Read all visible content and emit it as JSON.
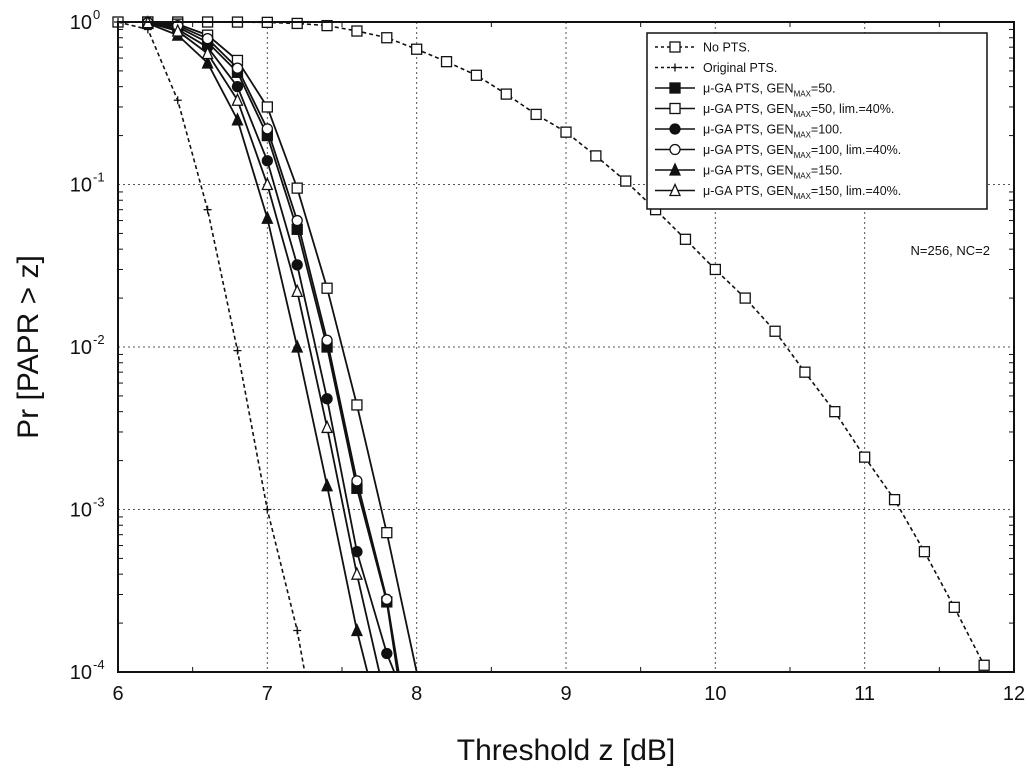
{
  "chart_data": {
    "type": "line",
    "title": "",
    "xlabel": "Threshold z [dB]",
    "ylabel": "Pr [PAPR > z]",
    "xlim": [
      6,
      12
    ],
    "ylim": [
      0.0001,
      1
    ],
    "yscale": "log",
    "xticks": [
      "6",
      "7",
      "8",
      "9",
      "10",
      "11",
      "12"
    ],
    "yticks": [
      {
        "base": "10",
        "exp": "0",
        "value": 1
      },
      {
        "base": "10",
        "exp": "-1",
        "value": 0.1
      },
      {
        "base": "10",
        "exp": "-2",
        "value": 0.01
      },
      {
        "base": "10",
        "exp": "-3",
        "value": 0.001
      },
      {
        "base": "10",
        "exp": "-4",
        "value": 0.0001
      }
    ],
    "grid": true,
    "legend_position": "top-right",
    "annotation": "N=256, NC=2",
    "series": [
      {
        "name": "No PTS.",
        "label_parts": [
          "No PTS."
        ],
        "marker": "square-open",
        "line": "dash",
        "x": [
          6.0,
          6.2,
          6.4,
          6.6,
          6.8,
          7.0,
          7.2,
          7.4,
          7.6,
          7.8,
          8.0,
          8.2,
          8.4,
          8.6,
          8.8,
          9.0,
          9.2,
          9.4,
          9.6,
          9.8,
          10.0,
          10.2,
          10.4,
          10.6,
          10.8,
          11.0,
          11.2,
          11.4,
          11.6,
          11.8
        ],
        "y": [
          1,
          1,
          1,
          1,
          0.999,
          0.995,
          0.98,
          0.95,
          0.88,
          0.8,
          0.68,
          0.57,
          0.47,
          0.36,
          0.27,
          0.21,
          0.15,
          0.105,
          0.07,
          0.046,
          0.03,
          0.02,
          0.0125,
          0.007,
          0.004,
          0.0021,
          0.00115,
          0.00055,
          0.00025,
          0.00011
        ]
      },
      {
        "name": "Original PTS.",
        "label_parts": [
          "Original PTS."
        ],
        "marker": "plus",
        "line": "dash",
        "x": [
          6.0,
          6.2,
          6.4,
          6.6,
          6.8,
          7.0,
          7.2,
          7.25
        ],
        "y": [
          1,
          0.9,
          0.33,
          0.07,
          0.0095,
          0.001,
          0.00018,
          0.0001
        ]
      },
      {
        "name": "μ-GA PTS, GENMAX=50.",
        "label_parts": [
          "μ-GA PTS, GEN",
          "MAX",
          "=50."
        ],
        "marker": "square-filled",
        "line": "solid",
        "x": [
          6.2,
          6.4,
          6.6,
          6.8,
          7.0,
          7.2,
          7.4,
          7.6,
          7.8,
          7.87
        ],
        "y": [
          0.99,
          0.93,
          0.75,
          0.49,
          0.2,
          0.053,
          0.01,
          0.00135,
          0.00027,
          0.0001
        ]
      },
      {
        "name": "μ-GA PTS, GENMAX=50, lim.=40%.",
        "label_parts": [
          "μ-GA PTS, GEN",
          "MAX",
          "=50, lim.=40%."
        ],
        "marker": "square-open",
        "line": "solid",
        "x": [
          6.2,
          6.4,
          6.6,
          6.8,
          7.0,
          7.2,
          7.4,
          7.6,
          7.8,
          8.0
        ],
        "y": [
          1,
          0.97,
          0.83,
          0.58,
          0.3,
          0.095,
          0.023,
          0.0044,
          0.00072,
          0.0001
        ]
      },
      {
        "name": "μ-GA PTS, GENMAX=100.",
        "label_parts": [
          "μ-GA PTS, GEN",
          "MAX",
          "=100."
        ],
        "marker": "circle-filled",
        "line": "solid",
        "x": [
          6.2,
          6.4,
          6.6,
          6.8,
          7.0,
          7.2,
          7.4,
          7.6,
          7.8,
          7.85
        ],
        "y": [
          0.99,
          0.9,
          0.7,
          0.4,
          0.14,
          0.032,
          0.0048,
          0.00055,
          0.00013,
          0.0001
        ]
      },
      {
        "name": "μ-GA PTS, GENMAX=100, lim.=40%.",
        "label_parts": [
          "μ-GA PTS, GEN",
          "MAX",
          "=100, lim.=40%."
        ],
        "marker": "circle-open",
        "line": "solid",
        "x": [
          6.2,
          6.4,
          6.6,
          6.8,
          7.0,
          7.2,
          7.4,
          7.6,
          7.8,
          7.88
        ],
        "y": [
          0.99,
          0.95,
          0.79,
          0.52,
          0.22,
          0.06,
          0.011,
          0.0015,
          0.00028,
          0.0001
        ]
      },
      {
        "name": "μ-GA PTS, GENMAX=150.",
        "label_parts": [
          "μ-GA PTS, GEN",
          "MAX",
          "=150."
        ],
        "marker": "triangle-filled",
        "line": "solid",
        "x": [
          6.2,
          6.4,
          6.6,
          6.8,
          7.0,
          7.2,
          7.4,
          7.6,
          7.67
        ],
        "y": [
          0.98,
          0.83,
          0.56,
          0.25,
          0.062,
          0.01,
          0.0014,
          0.00018,
          0.0001
        ]
      },
      {
        "name": "μ-GA PTS, GENMAX=150, lim.=40%.",
        "label_parts": [
          "μ-GA PTS, GEN",
          "MAX",
          "=150, lim.=40%."
        ],
        "marker": "triangle-open",
        "line": "solid",
        "x": [
          6.2,
          6.4,
          6.6,
          6.8,
          7.0,
          7.2,
          7.4,
          7.6,
          7.75
        ],
        "y": [
          0.99,
          0.88,
          0.64,
          0.33,
          0.1,
          0.022,
          0.0032,
          0.0004,
          0.0001
        ]
      }
    ]
  }
}
